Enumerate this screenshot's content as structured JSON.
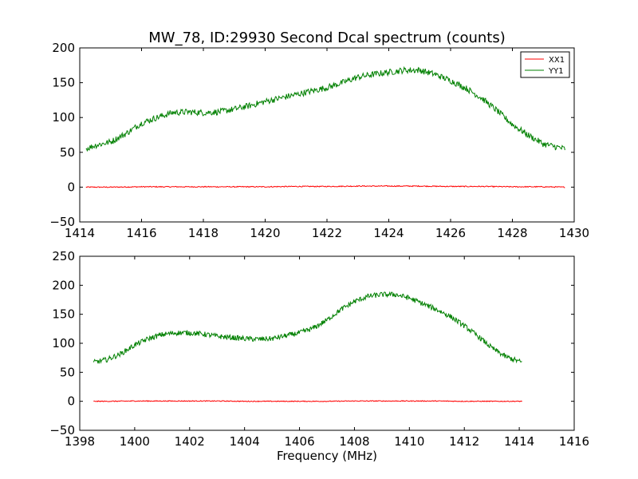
{
  "chart_data": [
    {
      "type": "line",
      "title": "MW_78, ID:29930 Second Dcal spectrum (counts)",
      "xlabel": "",
      "ylabel": "",
      "xlim": [
        1414,
        1430
      ],
      "ylim": [
        -50,
        200
      ],
      "x_ticks": [
        1414,
        1416,
        1418,
        1420,
        1422,
        1424,
        1426,
        1428,
        1430
      ],
      "y_ticks": [
        -50,
        0,
        50,
        100,
        150,
        200
      ],
      "x_tick_labels": [
        "1414",
        "1416",
        "1418",
        "1420",
        "1422",
        "1424",
        "1426",
        "1428",
        "1430"
      ],
      "y_tick_labels": [
        "−50",
        "0",
        "50",
        "100",
        "150",
        "200"
      ],
      "legend": {
        "placement": "top-right",
        "entries": [
          "XX1",
          "YY1"
        ]
      },
      "series": [
        {
          "name": "XX1",
          "color": "#ff0000",
          "x": [
            1414.2,
            1415,
            1416,
            1417,
            1418,
            1419,
            1420,
            1421,
            1422,
            1423,
            1424,
            1425,
            1426,
            1427,
            1428,
            1429,
            1429.7
          ],
          "y": [
            0,
            0,
            0.5,
            0.5,
            0.5,
            0.5,
            0.5,
            1,
            1,
            1.5,
            1.5,
            1.5,
            1,
            1,
            0.5,
            0.5,
            0
          ]
        },
        {
          "name": "YY1",
          "color": "#008000",
          "x": [
            1414.2,
            1414.5,
            1415,
            1415.5,
            1416,
            1416.5,
            1417,
            1417.5,
            1418,
            1418.5,
            1419,
            1419.5,
            1420,
            1420.5,
            1421,
            1421.5,
            1422,
            1422.5,
            1423,
            1423.5,
            1424,
            1424.5,
            1425,
            1425.5,
            1426,
            1426.5,
            1427,
            1427.5,
            1428,
            1428.5,
            1429,
            1429.7
          ],
          "y": [
            55,
            60,
            65,
            77,
            92,
            100,
            107,
            108,
            107,
            108,
            112,
            117,
            123,
            128,
            133,
            138,
            143,
            150,
            158,
            162,
            165,
            168,
            168,
            162,
            153,
            142,
            128,
            110,
            90,
            75,
            62,
            55
          ]
        }
      ]
    },
    {
      "type": "line",
      "title": "",
      "xlabel": "Frequency (MHz)",
      "ylabel": "",
      "xlim": [
        1398,
        1416
      ],
      "ylim": [
        -50,
        250
      ],
      "x_ticks": [
        1398,
        1400,
        1402,
        1404,
        1406,
        1408,
        1410,
        1412,
        1414,
        1416
      ],
      "y_ticks": [
        -50,
        0,
        50,
        100,
        150,
        200,
        250
      ],
      "x_tick_labels": [
        "1398",
        "1400",
        "1402",
        "1404",
        "1406",
        "1408",
        "1410",
        "1412",
        "1414",
        "1416"
      ],
      "y_tick_labels": [
        "−50",
        "0",
        "50",
        "100",
        "150",
        "200",
        "250"
      ],
      "series": [
        {
          "name": "XX1",
          "color": "#ff0000",
          "x": [
            1398.5,
            1399,
            1400,
            1401,
            1402,
            1403,
            1404,
            1405,
            1406,
            1407,
            1408,
            1409,
            1410,
            1411,
            1412,
            1413,
            1414.1
          ],
          "y": [
            0,
            0,
            0.5,
            0.5,
            0.5,
            0.5,
            0,
            0,
            0,
            0,
            0.5,
            0.5,
            0.5,
            0.5,
            0,
            0,
            0
          ]
        },
        {
          "name": "YY1",
          "color": "#008000",
          "x": [
            1398.5,
            1399,
            1399.5,
            1400,
            1400.5,
            1401,
            1401.5,
            1402,
            1402.5,
            1403,
            1403.5,
            1404,
            1404.5,
            1405,
            1405.5,
            1406,
            1406.5,
            1407,
            1407.5,
            1408,
            1408.5,
            1409,
            1409.5,
            1410,
            1410.5,
            1411,
            1411.5,
            1412,
            1412.5,
            1413,
            1413.5,
            1414.1
          ],
          "y": [
            67,
            72,
            82,
            97,
            108,
            115,
            118,
            118,
            116,
            112,
            110,
            108,
            107,
            108,
            113,
            118,
            126,
            140,
            158,
            172,
            181,
            184,
            184,
            178,
            168,
            158,
            146,
            130,
            112,
            92,
            77,
            67
          ]
        }
      ]
    }
  ]
}
